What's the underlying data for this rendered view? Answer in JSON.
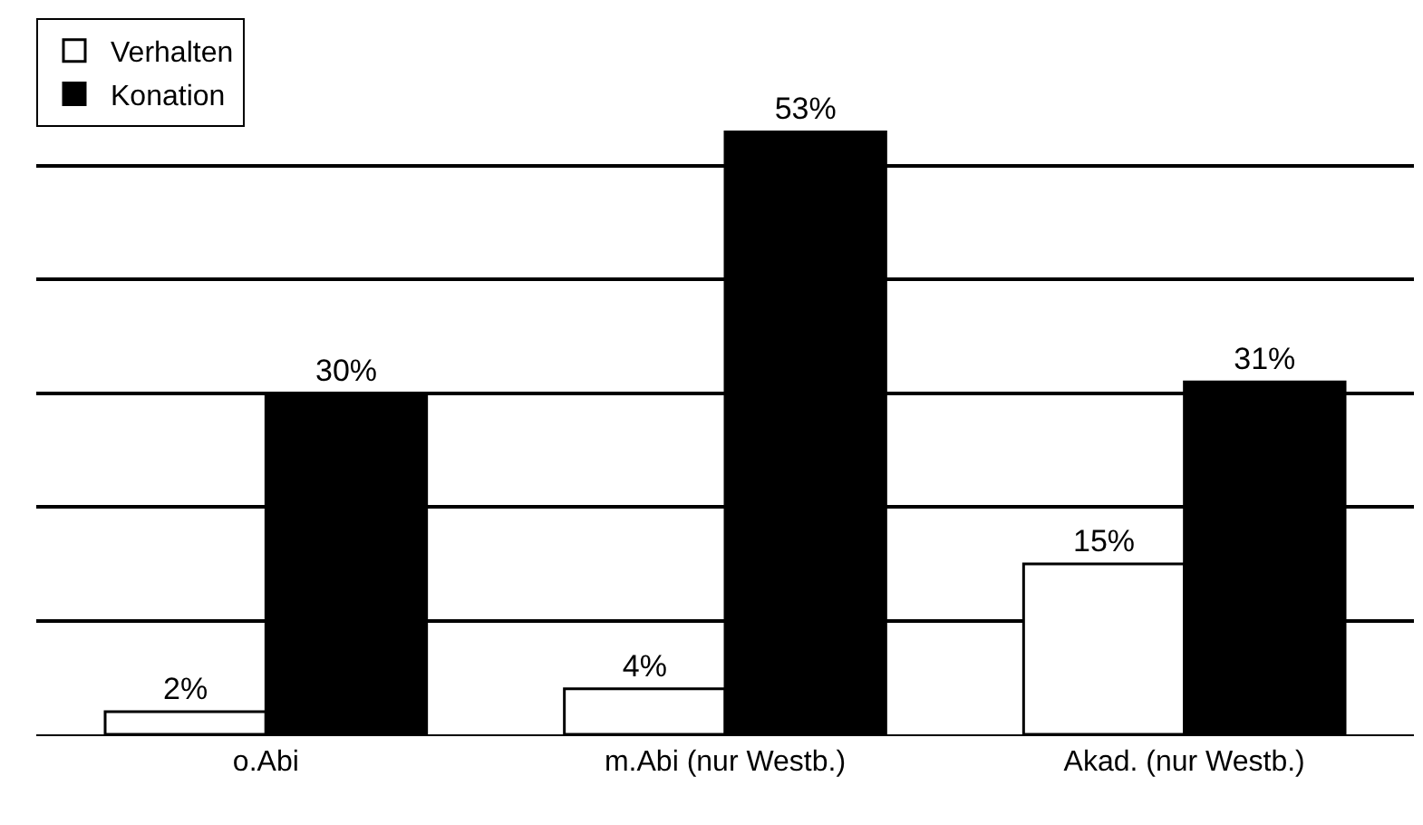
{
  "chart_data": {
    "type": "bar",
    "categories": [
      "o.Abi",
      "m.Abi (nur Westb.)",
      "Akad. (nur Westb.)"
    ],
    "series": [
      {
        "name": "Verhalten",
        "color": "#ffffff",
        "values": [
          2,
          4,
          15
        ],
        "value_labels": [
          "2%",
          "4%",
          "15%"
        ]
      },
      {
        "name": "Konation",
        "color": "#000000",
        "values": [
          30,
          53,
          31
        ],
        "value_labels": [
          "30%",
          "53%",
          "31%"
        ]
      }
    ],
    "ylim": [
      0,
      63
    ],
    "yticks": [
      {
        "value": 0,
        "label": null
      },
      {
        "value": 10,
        "label": null
      },
      {
        "value": 20,
        "label": null
      },
      {
        "value": 30,
        "label": null
      },
      {
        "value": 40,
        "label": null
      },
      {
        "value": 50,
        "label": null
      }
    ],
    "grid": "y",
    "legend": "top left",
    "tick_labels": "x"
  }
}
